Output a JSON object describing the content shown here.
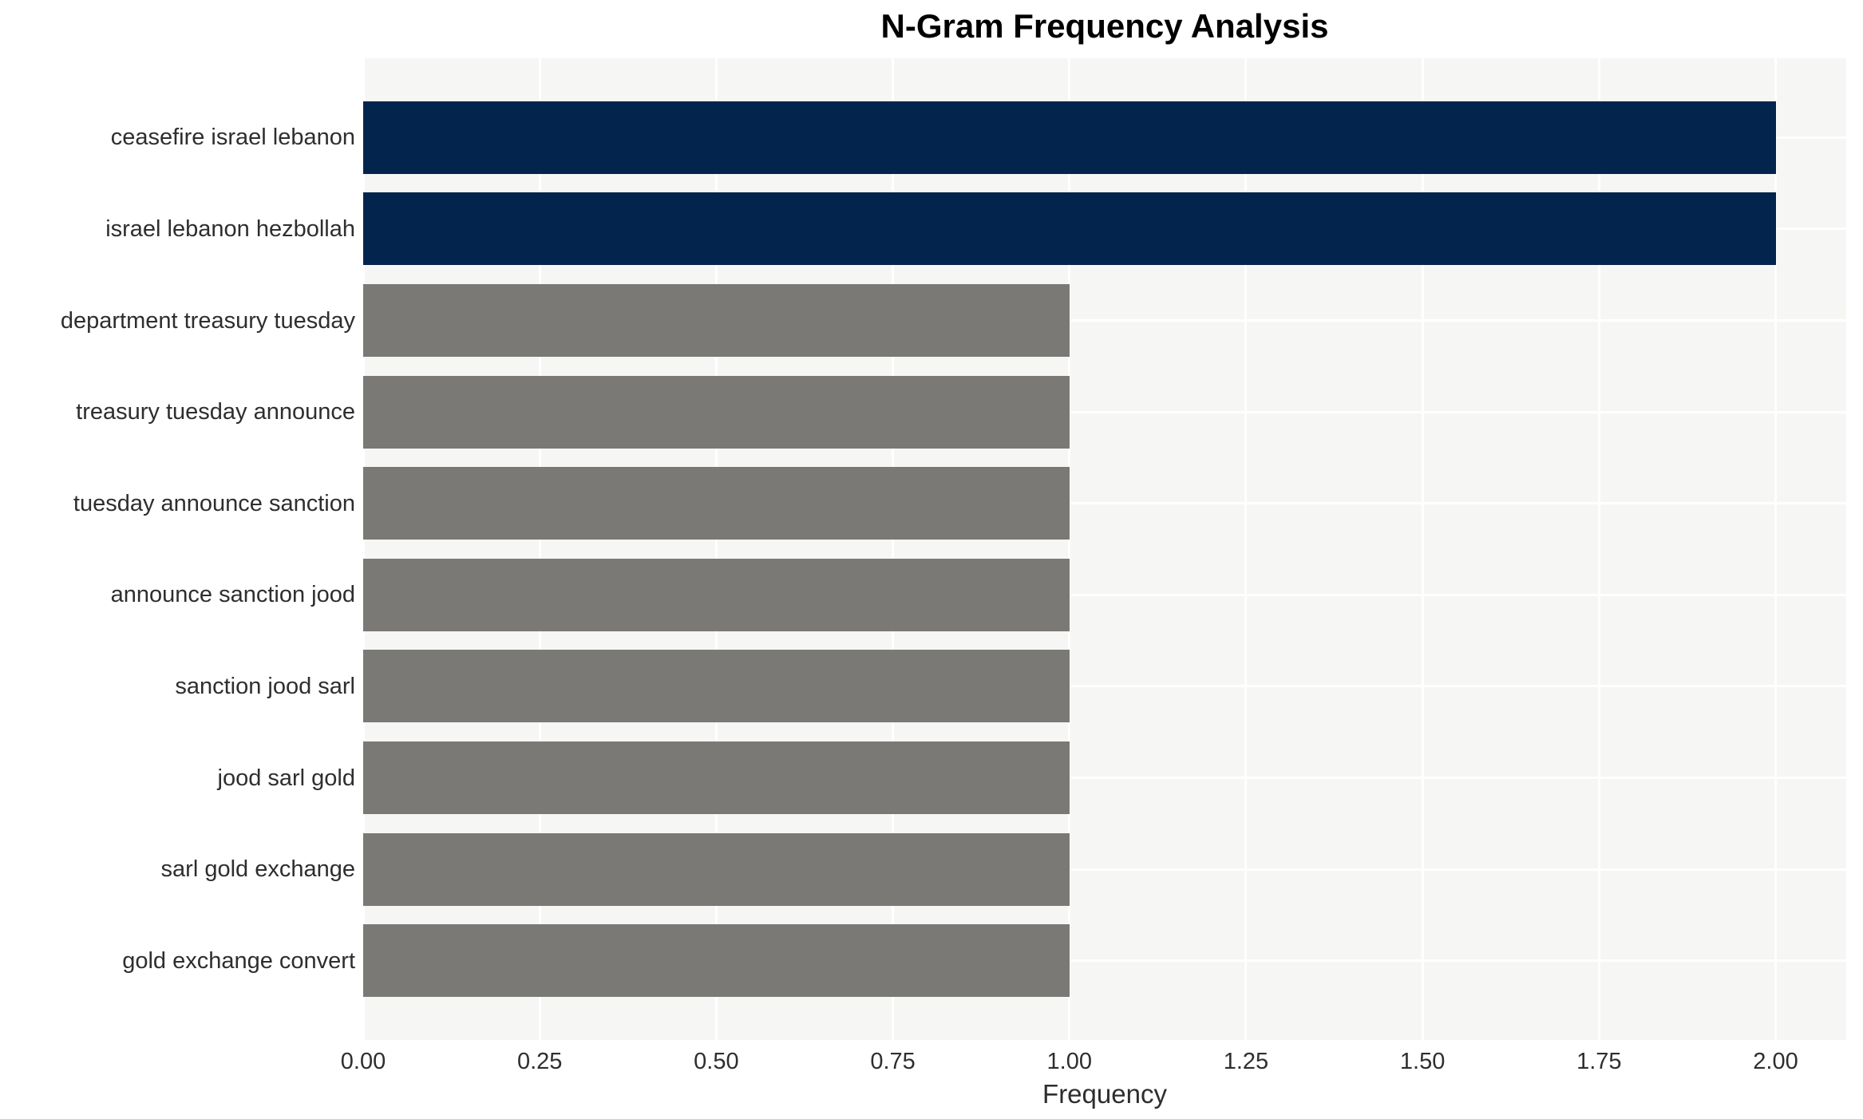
{
  "chart_data": {
    "type": "bar",
    "orientation": "horizontal",
    "title": "N-Gram Frequency Analysis",
    "xlabel": "Frequency",
    "ylabel": "",
    "categories": [
      "ceasefire israel lebanon",
      "israel lebanon hezbollah",
      "department treasury tuesday",
      "treasury tuesday announce",
      "tuesday announce sanction",
      "announce sanction jood",
      "sanction jood sarl",
      "jood sarl gold",
      "sarl gold exchange",
      "gold exchange convert"
    ],
    "values": [
      2,
      2,
      1,
      1,
      1,
      1,
      1,
      1,
      1,
      1
    ],
    "bar_colors": [
      "#03244D",
      "#03244D",
      "#7A7975",
      "#7A7975",
      "#7A7975",
      "#7A7975",
      "#7A7975",
      "#7A7975",
      "#7A7975",
      "#7A7975"
    ],
    "x_tick_labels": [
      "0.00",
      "0.25",
      "0.50",
      "0.75",
      "1.00",
      "1.25",
      "1.50",
      "1.75",
      "2.00"
    ],
    "xlim": [
      0,
      2.1
    ],
    "grid": true,
    "legend_position": "none",
    "colors": {
      "highlight_bar": "#03244D",
      "default_bar": "#7A7975",
      "plot_background": "#F6F6F4",
      "gridline": "#FFFFFF",
      "tick_text": "#2E2E2E",
      "title_text": "#000000"
    }
  }
}
